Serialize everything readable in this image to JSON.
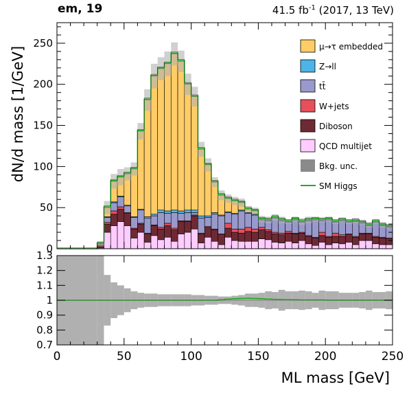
{
  "header": {
    "left_title": "em, 19",
    "right_title_pre": "41.5 fb",
    "right_title_sup": "-1",
    "right_title_post": " (2017, 13 TeV)"
  },
  "colors": {
    "embedded": "#ffcc66",
    "zll": "#4eb3e6",
    "ttbar": "#9999cc",
    "wjets": "#e5505a",
    "diboson": "#6e2a34",
    "qcd": "#ffccff",
    "unc": "#b0b0b0",
    "higgs": "#22aa22"
  },
  "chart_data": [
    {
      "type": "bar",
      "stacked": true,
      "title": "",
      "xlabel": "ML mass [GeV]",
      "ylabel": "dN/d mass [1/GeV]",
      "xlim": [
        0,
        250
      ],
      "ylim": [
        0,
        275
      ],
      "yticks": [
        0,
        50,
        100,
        150,
        200,
        250
      ],
      "xticks": [
        0,
        50,
        100,
        150,
        200,
        250
      ],
      "legend_position": "top-right",
      "bin_edges": [
        0,
        30,
        35,
        40,
        45,
        50,
        55,
        60,
        65,
        70,
        75,
        80,
        85,
        90,
        95,
        100,
        105,
        110,
        115,
        120,
        125,
        130,
        135,
        140,
        145,
        150,
        155,
        160,
        165,
        170,
        175,
        180,
        185,
        190,
        195,
        200,
        205,
        210,
        215,
        220,
        225,
        230,
        235,
        240,
        245,
        250
      ],
      "series": [
        {
          "name": "QCD multijet",
          "color_key": "qcd",
          "values": [
            0,
            1,
            20,
            28,
            33,
            28,
            13,
            20,
            8,
            16,
            11,
            14,
            9,
            18,
            20,
            24,
            7,
            14,
            9,
            5,
            14,
            10,
            9,
            9,
            9,
            12,
            11,
            8,
            7,
            9,
            7,
            10,
            6,
            4,
            8,
            5,
            7,
            6,
            8,
            5,
            10,
            10,
            6,
            5,
            5
          ]
        },
        {
          "name": "Diboson",
          "color_key": "diboson",
          "values": [
            0,
            3,
            10,
            14,
            15,
            15,
            11,
            10,
            10,
            12,
            13,
            14,
            14,
            15,
            13,
            16,
            11,
            12,
            14,
            12,
            11,
            10,
            10,
            12,
            11,
            11,
            10,
            10,
            10,
            10,
            11,
            9,
            9,
            9,
            8,
            9,
            8,
            9,
            9,
            9,
            8,
            8,
            8,
            8,
            7
          ]
        },
        {
          "name": "W+jets",
          "color_key": "wjets",
          "values": [
            0,
            0,
            2,
            4,
            3,
            1,
            1,
            1,
            1,
            1,
            2,
            3,
            2,
            1,
            1,
            1,
            1,
            1,
            1,
            1,
            6,
            4,
            5,
            5,
            4,
            3,
            2,
            2,
            2,
            2,
            1,
            1,
            1,
            1,
            4,
            1,
            4,
            2,
            1,
            1,
            1,
            1,
            1,
            1,
            1
          ]
        },
        {
          "name": "tt̄",
          "color_key": "ttbar",
          "values": [
            0,
            1,
            6,
            10,
            12,
            8,
            13,
            16,
            18,
            11,
            18,
            12,
            19,
            9,
            10,
            3,
            18,
            11,
            18,
            22,
            13,
            18,
            22,
            17,
            17,
            9,
            11,
            17,
            15,
            11,
            16,
            12,
            18,
            21,
            14,
            20,
            13,
            17,
            14,
            18,
            12,
            9,
            17,
            14,
            13
          ]
        },
        {
          "name": "Z→ll",
          "color_key": "zll",
          "values": [
            0,
            0,
            1,
            1,
            1,
            1,
            1,
            1,
            2,
            2,
            3,
            3,
            3,
            3,
            3,
            3,
            3,
            2,
            2,
            1,
            1,
            1,
            1,
            1,
            1,
            1,
            1,
            1,
            1,
            1,
            1,
            1,
            1,
            1,
            1,
            1,
            1,
            1,
            1,
            1,
            1,
            1,
            1,
            1,
            1
          ]
        },
        {
          "name": "μ→τ embedded",
          "color_key": "embedded",
          "values": [
            0,
            1,
            11,
            25,
            23,
            38,
            58,
            95,
            142,
            168,
            172,
            179,
            190,
            182,
            153,
            138,
            81,
            62,
            37,
            24,
            16,
            15,
            9,
            4,
            4,
            0,
            0,
            0,
            0,
            0,
            0,
            0,
            0,
            0,
            0,
            0,
            0,
            0,
            0,
            0,
            0,
            0,
            0,
            0,
            0
          ]
        }
      ],
      "uncertainty": {
        "name": "Bkg. unc.",
        "color_key": "unc",
        "values": [
          0,
          3,
          8,
          9,
          10,
          8,
          8,
          10,
          13,
          15,
          14,
          15,
          14,
          13,
          13,
          12,
          9,
          8,
          6,
          6,
          5,
          5,
          5,
          4,
          4,
          4,
          4,
          4,
          4,
          3,
          3,
          4,
          4,
          3,
          3,
          3,
          3,
          3,
          3,
          3,
          3,
          3,
          3,
          3,
          3
        ]
      },
      "signal": {
        "name": "SM Higgs",
        "color_key": "higgs",
        "extra": 1
      }
    },
    {
      "type": "bar",
      "role": "ratio",
      "xlim": [
        0,
        250
      ],
      "ylim": [
        0.7,
        1.3
      ],
      "yticks": [
        0.7,
        0.8,
        0.9,
        1,
        1.1,
        1.2,
        1.3
      ],
      "xticks": [
        0,
        50,
        100,
        150,
        200,
        250
      ],
      "band_halfwidth": [
        0.3,
        0.3,
        0.17,
        0.12,
        0.1,
        0.08,
        0.06,
        0.05,
        0.045,
        0.045,
        0.04,
        0.04,
        0.04,
        0.04,
        0.04,
        0.035,
        0.035,
        0.03,
        0.03,
        0.025,
        0.025,
        0.03,
        0.035,
        0.045,
        0.045,
        0.05,
        0.06,
        0.055,
        0.07,
        0.06,
        0.06,
        0.065,
        0.06,
        0.05,
        0.065,
        0.06,
        0.06,
        0.05,
        0.05,
        0.05,
        0.055,
        0.065,
        0.055,
        0.055,
        0.06
      ],
      "signal_ratio": [
        1,
        1,
        1,
        1,
        1,
        1,
        1,
        1,
        1,
        1,
        1,
        1,
        1,
        1,
        1,
        1,
        1,
        1,
        1,
        1.003,
        1.007,
        1.01,
        1.012,
        1.013,
        1.012,
        1.01,
        1.008,
        1.006,
        1.005,
        1.004,
        1.003,
        1.002,
        1.002,
        1.002,
        1.002,
        1.001,
        1.001,
        1.001,
        1.001,
        1.001,
        1.001,
        1.001,
        1.001,
        1.001,
        1.001
      ]
    }
  ]
}
